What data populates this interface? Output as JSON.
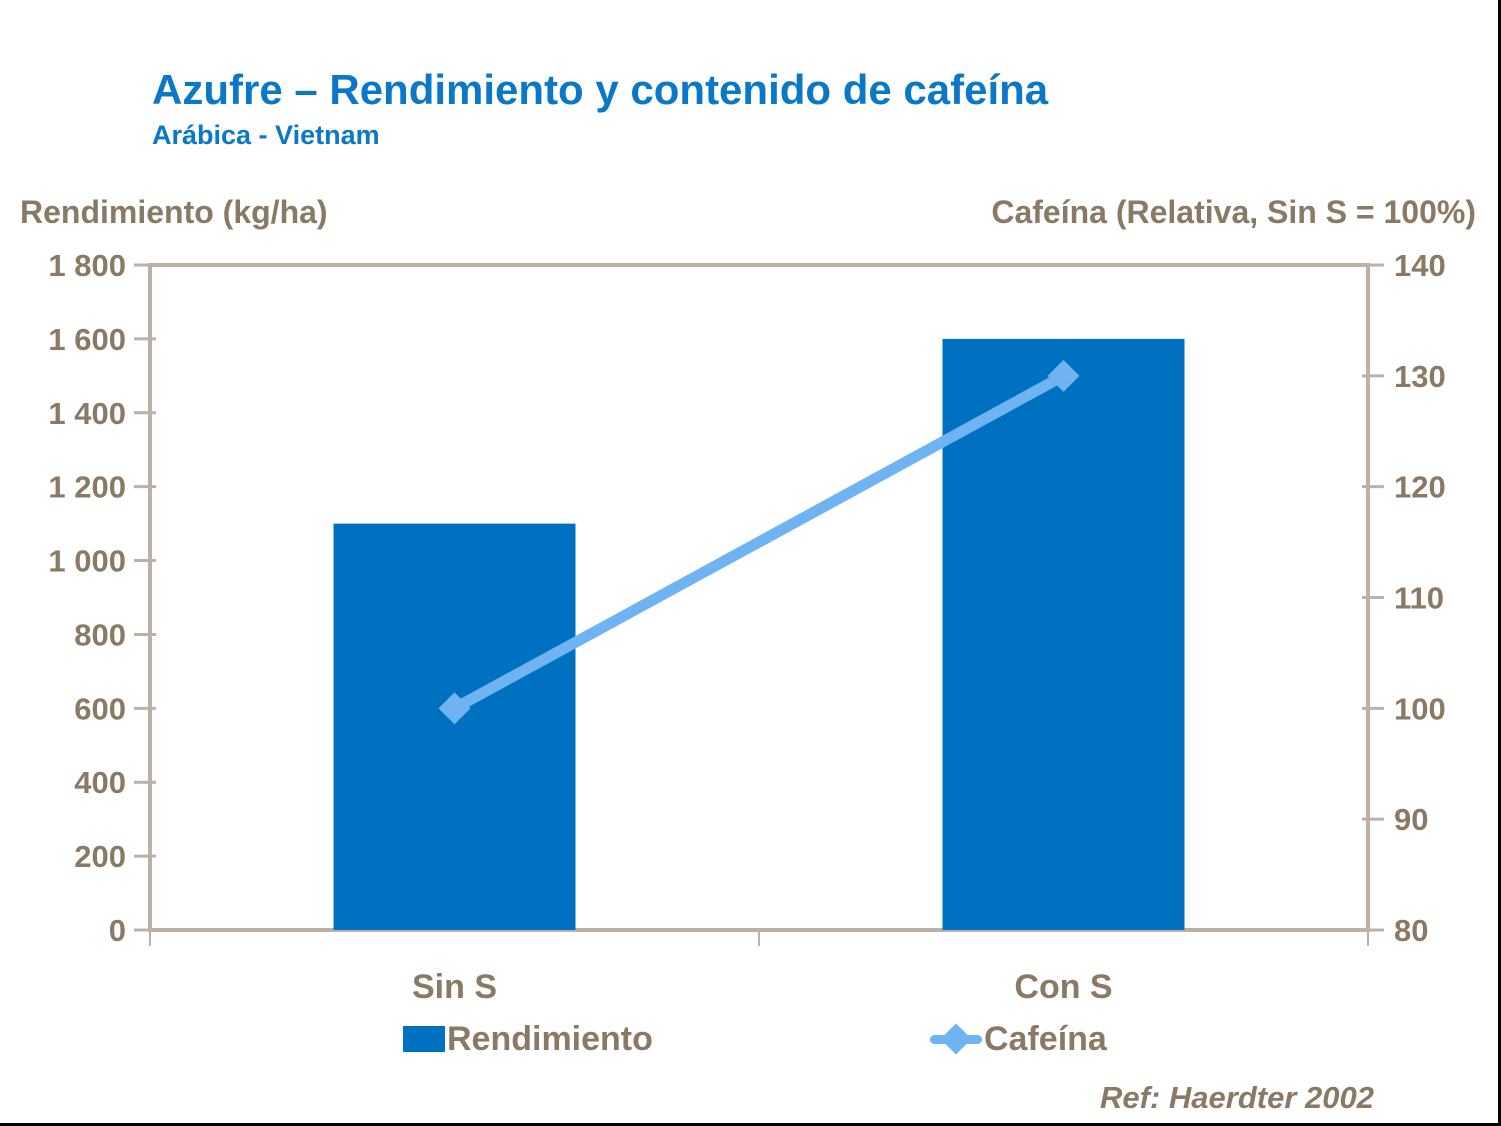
{
  "header": {
    "title": "Azufre – Rendimiento y contenido de cafeína",
    "subtitle": "Arábica - Vietnam"
  },
  "axis_titles": {
    "left": "Rendimiento (kg/ha)",
    "right": "Cafeína (Relativa, Sin S = 100%)"
  },
  "legend": {
    "bar_label": "Rendimiento",
    "line_label": "Cafeína"
  },
  "ref_note": "Ref: Haerdter 2002",
  "colors": {
    "title_blue": "#0a78c8",
    "bar_blue": "#0070c0",
    "line_blue": "#6fb3f3",
    "text_brown": "#8a7a65",
    "axis_tan": "#bcb1a4",
    "background": "#ffffff"
  },
  "chart_data": {
    "type": "bar",
    "subtype": "combo-bar-line",
    "title": "Azufre – Rendimiento y contenido de cafeína",
    "subtitle": "Arábica - Vietnam",
    "categories": [
      "Sin S",
      "Con S"
    ],
    "series": [
      {
        "name": "Rendimiento",
        "type": "bar",
        "axis": "left",
        "values": [
          1100,
          1600
        ]
      },
      {
        "name": "Cafeína",
        "type": "line",
        "axis": "right",
        "values": [
          100,
          130
        ],
        "marker": "diamond"
      }
    ],
    "left_axis": {
      "label": "Rendimiento (kg/ha)",
      "min": 0,
      "max": 1800,
      "step": 200,
      "tick_values": [
        1800,
        1600,
        1400,
        1200,
        1000,
        800,
        600,
        400,
        200,
        0
      ],
      "tick_labels": [
        "1 800",
        "1 600",
        "1 400",
        "1 200",
        "1 000",
        "800",
        "600",
        "400",
        "200",
        "0"
      ]
    },
    "right_axis": {
      "label": "Cafeína (Relativa, Sin S = 100%)",
      "min": 80,
      "max": 140,
      "step": 10,
      "tick_values": [
        140,
        130,
        120,
        110,
        100,
        90,
        80
      ],
      "tick_labels": [
        "140",
        "130",
        "120",
        "110",
        "100",
        "90",
        "80"
      ]
    },
    "grid": false,
    "legend_position": "bottom",
    "annotation": "Ref: Haerdter 2002"
  }
}
